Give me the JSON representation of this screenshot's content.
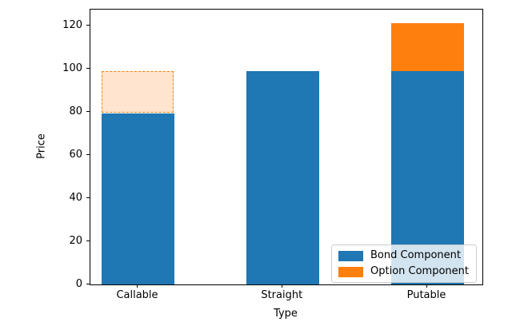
{
  "figure": {
    "background": "#ffffff"
  },
  "chart_data": {
    "type": "bar",
    "stacked": true,
    "title": "",
    "xlabel": "Type",
    "ylabel": "Price",
    "categories": [
      "Callable",
      "Straight",
      "Putable"
    ],
    "series": [
      {
        "name": "Bond Component",
        "color": "#1f77b4",
        "values": [
          79.2,
          99.2,
          99.2
        ]
      },
      {
        "name": "Option Component",
        "color": "#ff7f0e",
        "values": [
          20,
          0,
          22
        ],
        "point_styles": [
          "dashed-outline",
          "none",
          "solid"
        ],
        "dashed_fill": "rgba(255,127,14,0.2)"
      }
    ],
    "ylim": [
      0,
      127.6
    ],
    "yticks": [
      0,
      20,
      40,
      60,
      80,
      100,
      120
    ],
    "grid": false,
    "legend": {
      "position": "lower right",
      "entries": [
        "Bond Component",
        "Option Component"
      ]
    }
  }
}
